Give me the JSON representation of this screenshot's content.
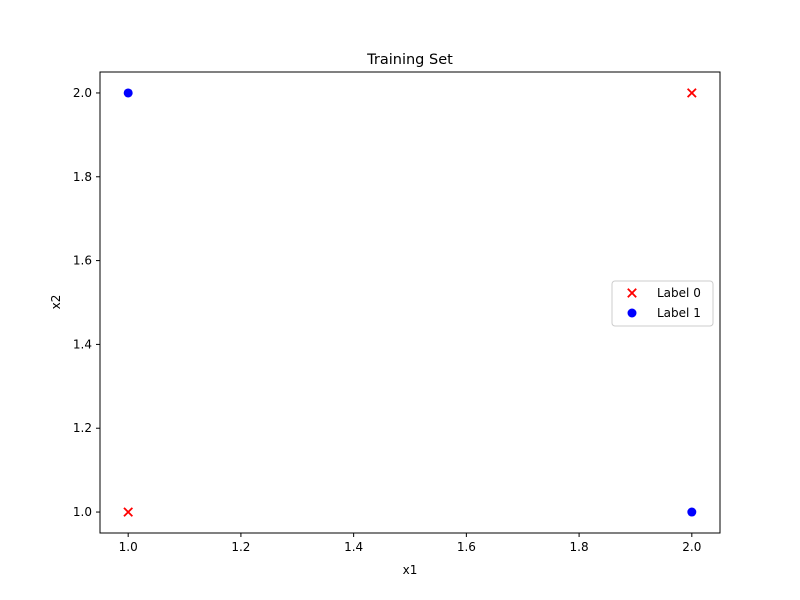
{
  "chart_data": {
    "type": "scatter",
    "title": "Training Set",
    "xlabel": "x1",
    "ylabel": "x2",
    "xlim": [
      0.95,
      2.05
    ],
    "ylim": [
      0.95,
      2.05
    ],
    "xticks": [
      1.0,
      1.2,
      1.4,
      1.6,
      1.8,
      2.0
    ],
    "yticks": [
      1.0,
      1.2,
      1.4,
      1.6,
      1.8,
      2.0
    ],
    "xtick_labels": [
      "1.0",
      "1.2",
      "1.4",
      "1.6",
      "1.8",
      "2.0"
    ],
    "ytick_labels": [
      "1.0",
      "1.2",
      "1.4",
      "1.6",
      "1.8",
      "2.0"
    ],
    "grid": false,
    "legend_position": "center-right",
    "series": [
      {
        "name": "Label 0",
        "marker": "x",
        "color": "#ff0000",
        "points": [
          {
            "x": 1.0,
            "y": 1.0
          },
          {
            "x": 2.0,
            "y": 2.0
          }
        ]
      },
      {
        "name": "Label 1",
        "marker": "circle",
        "color": "#0000ff",
        "points": [
          {
            "x": 1.0,
            "y": 2.0
          },
          {
            "x": 2.0,
            "y": 1.0
          }
        ]
      }
    ]
  }
}
